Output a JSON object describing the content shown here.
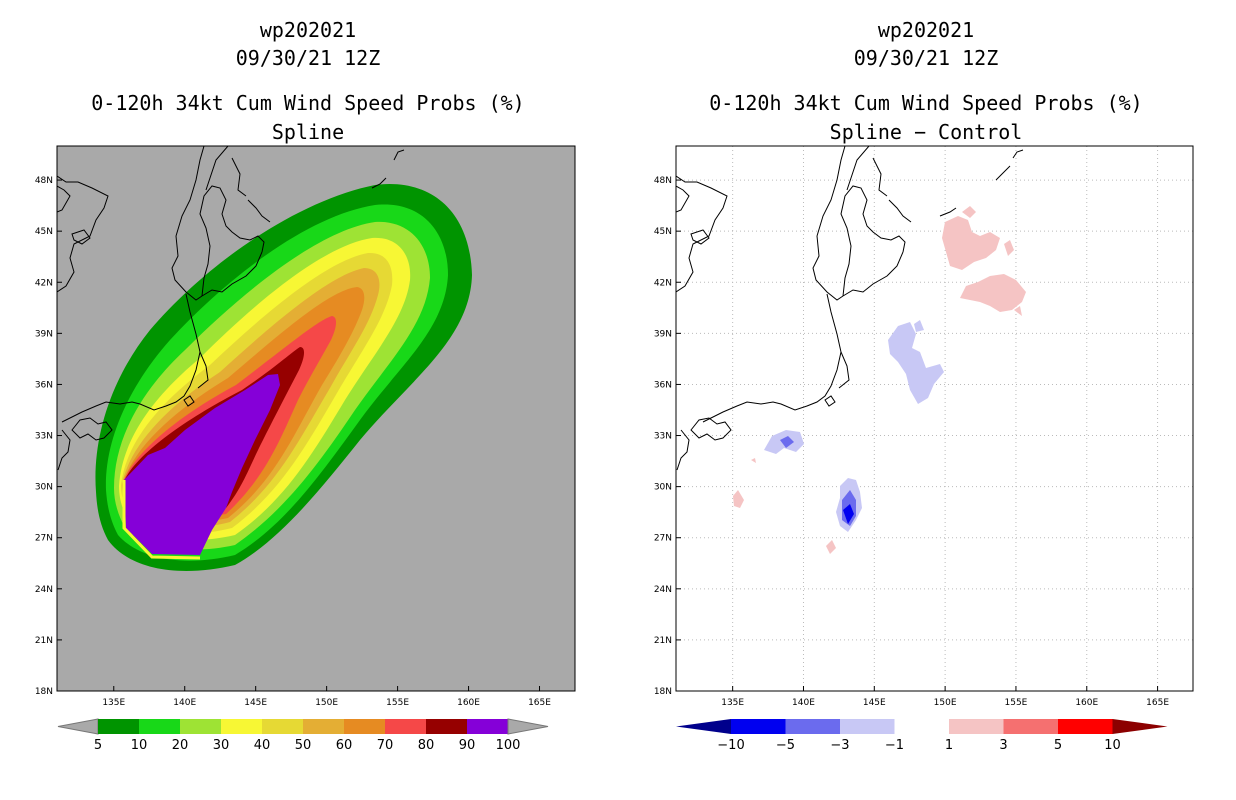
{
  "colors": {
    "land_gray": "#a9a9a9",
    "coast": "#000000",
    "grid": "#bbbbbb",
    "prob_levels": [
      "#009400",
      "#18d818",
      "#9ee334",
      "#f7f734",
      "#e6d934",
      "#e4ae34",
      "#e68b22",
      "#f54848",
      "#960000",
      "#8500d8"
    ],
    "diff_levels": [
      "#00008c",
      "#0000f0",
      "#6b6bee",
      "#c8c8f5",
      "#ffffff",
      "#f5c4c4",
      "#f57070",
      "#ff0000",
      "#8c0000"
    ]
  },
  "chart_data": [
    {
      "type": "contour",
      "title_lines": [
        "wp202021",
        "09/30/21 12Z",
        "0-120h 34kt Cum Wind Speed Probs (%)",
        "Spline"
      ],
      "storm_id": "wp202021",
      "datetime": "09/30/21 12Z",
      "variable": "0-120h 34kt Cum Wind Speed Probs (%)",
      "subtitle": "Spline",
      "x_ticks": [
        "135E",
        "140E",
        "145E",
        "150E",
        "155E",
        "160E",
        "165E"
      ],
      "y_ticks": [
        "48N",
        "45N",
        "42N",
        "39N",
        "36N",
        "33N",
        "30N",
        "27N",
        "24N",
        "21N",
        "18N"
      ],
      "lon_range": [
        131,
        167.5
      ],
      "lat_range": [
        18,
        50
      ],
      "colorbar_labels": [
        "5",
        "10",
        "20",
        "30",
        "40",
        "50",
        "60",
        "70",
        "80",
        "90",
        "100"
      ],
      "contour_levels": [
        5,
        10,
        20,
        30,
        40,
        50,
        60,
        70,
        80,
        90,
        100
      ],
      "track_note": "probability swath from ~27N 137E toward ~42N 160E"
    },
    {
      "type": "contour",
      "title_lines": [
        "wp202021",
        "09/30/21 12Z",
        "0-120h 34kt Cum Wind Speed Probs (%)",
        "Spline − Control"
      ],
      "storm_id": "wp202021",
      "datetime": "09/30/21 12Z",
      "variable": "0-120h 34kt Cum Wind Speed Probs (%)",
      "subtitle": "Spline − Control",
      "x_ticks": [
        "135E",
        "140E",
        "145E",
        "150E",
        "155E",
        "160E",
        "165E"
      ],
      "y_ticks": [
        "48N",
        "45N",
        "42N",
        "39N",
        "36N",
        "33N",
        "30N",
        "27N",
        "24N",
        "21N",
        "18N"
      ],
      "lon_range": [
        131,
        167.5
      ],
      "lat_range": [
        18,
        50
      ],
      "colorbar_labels": [
        "−10",
        "−5",
        "−3",
        "−1",
        "1",
        "3",
        "5",
        "10"
      ],
      "contour_levels": [
        -10,
        -5,
        -3,
        -1,
        1,
        3,
        5,
        10
      ]
    }
  ]
}
